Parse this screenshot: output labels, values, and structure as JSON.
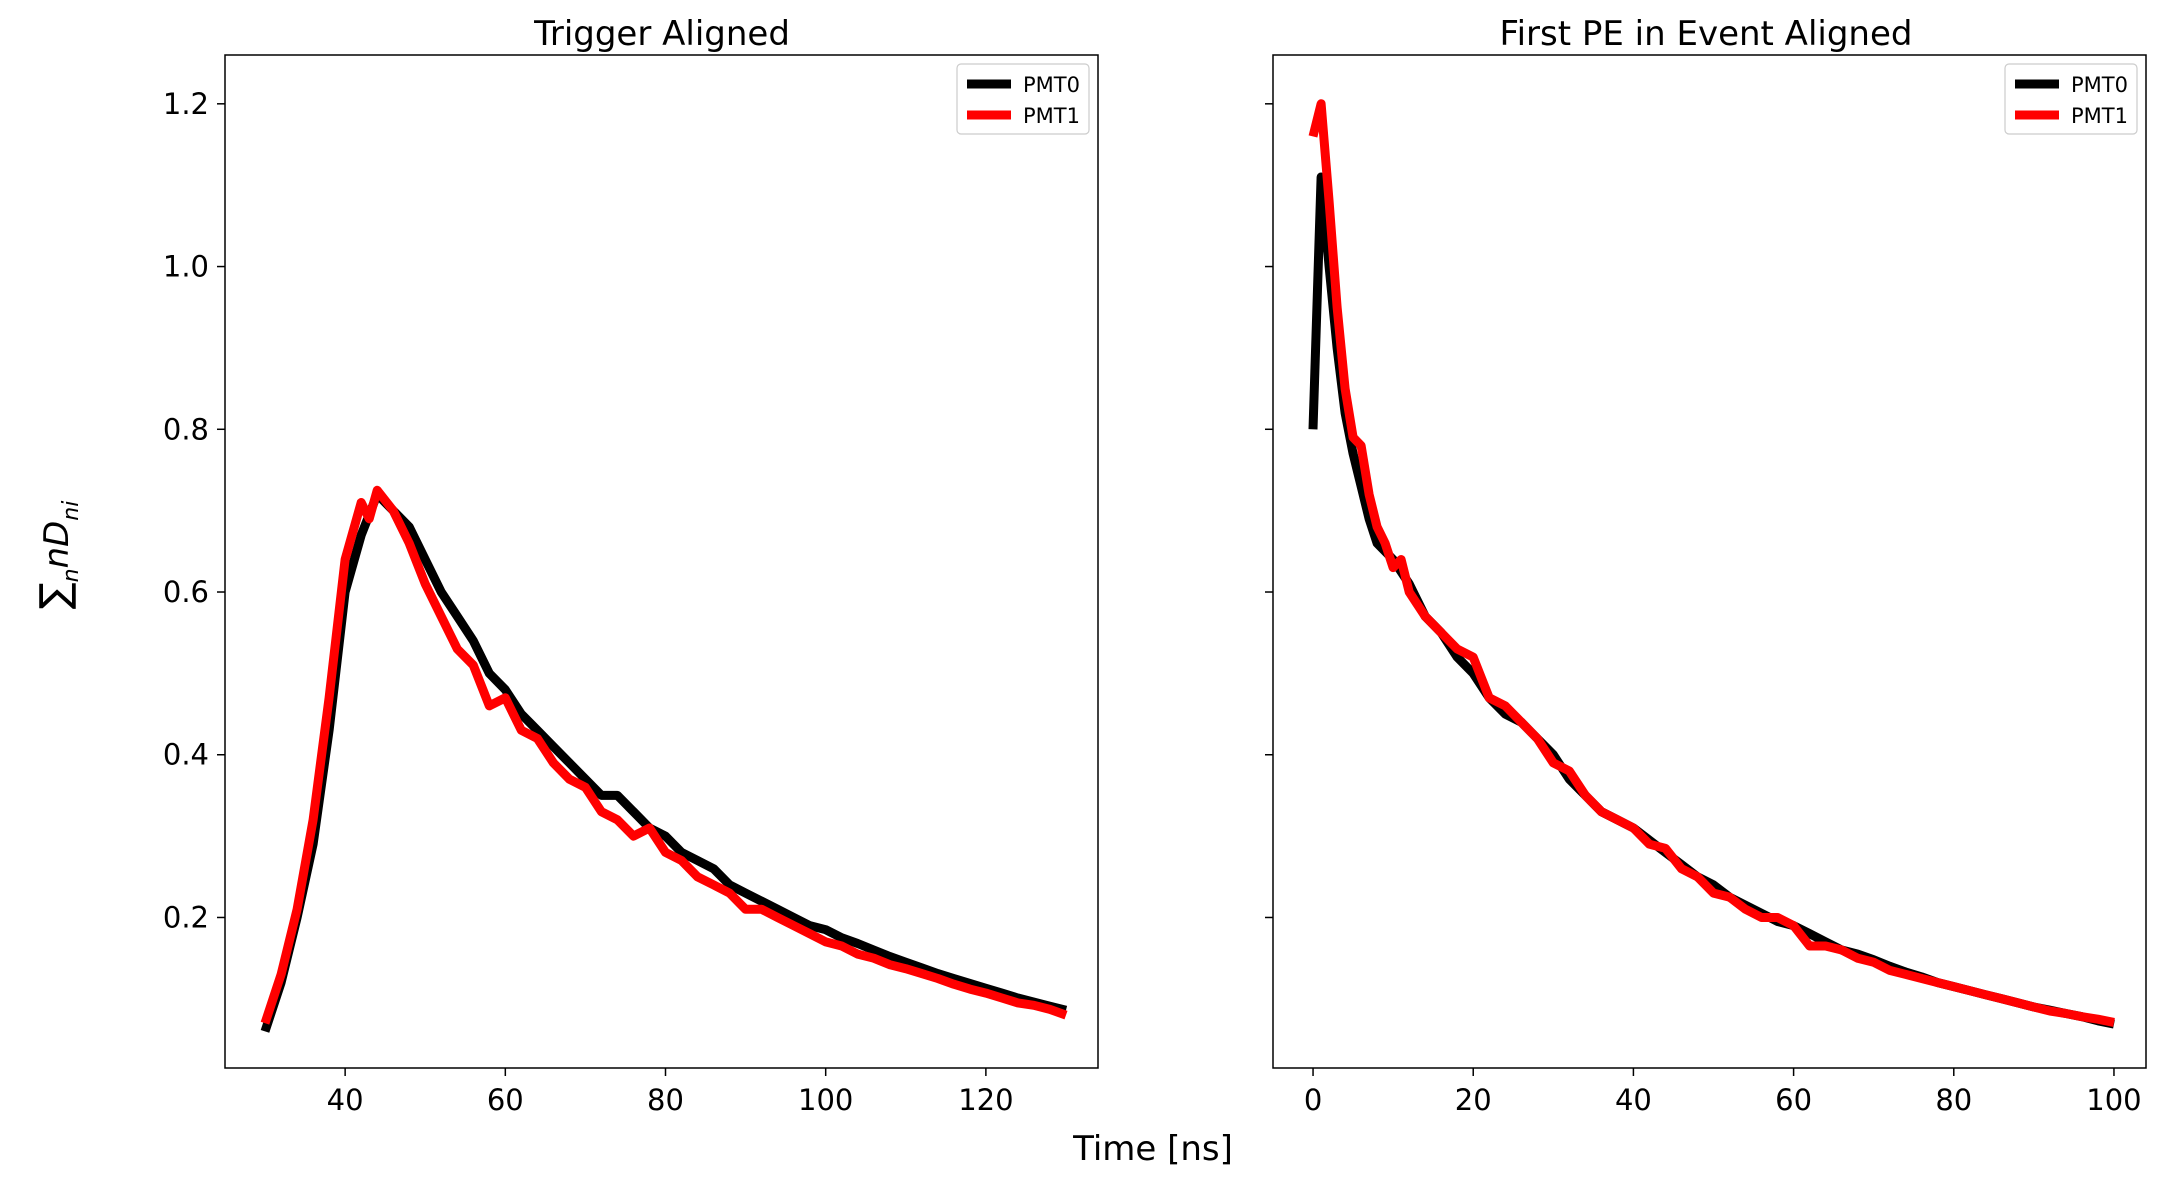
{
  "figure": {
    "xlabel": "Time [ns]",
    "ylabel_main": "∑",
    "ylabel_sub": "n",
    "ylabel_rest": "nD",
    "ylabel_rest_sub": "ni"
  },
  "chart_data": [
    {
      "type": "line",
      "title": "Trigger Aligned",
      "xlim": [
        25,
        134
      ],
      "ylim": [
        0.015,
        1.26
      ],
      "xticks": [
        40,
        60,
        80,
        100,
        120
      ],
      "yticks": [
        0.2,
        0.4,
        0.6,
        0.8,
        1.0,
        1.2
      ],
      "ytick_labels": [
        "0.2",
        "0.4",
        "0.6",
        "0.8",
        "1.0",
        "1.2"
      ],
      "show_yticklabels": true,
      "legend_position": "top-right",
      "series": [
        {
          "name": "PMT0",
          "color": "#000000",
          "x": [
            30,
            32,
            34,
            36,
            38,
            40,
            42,
            44,
            46,
            48,
            50,
            52,
            54,
            56,
            58,
            60,
            62,
            64,
            66,
            68,
            70,
            72,
            74,
            76,
            78,
            80,
            82,
            84,
            86,
            88,
            90,
            92,
            94,
            96,
            98,
            100,
            102,
            104,
            106,
            108,
            110,
            112,
            114,
            116,
            118,
            120,
            122,
            124,
            126,
            128,
            130
          ],
          "y": [
            0.06,
            0.12,
            0.2,
            0.29,
            0.43,
            0.6,
            0.67,
            0.72,
            0.7,
            0.68,
            0.64,
            0.6,
            0.57,
            0.54,
            0.5,
            0.48,
            0.45,
            0.43,
            0.41,
            0.39,
            0.37,
            0.35,
            0.35,
            0.33,
            0.31,
            0.3,
            0.28,
            0.27,
            0.26,
            0.24,
            0.23,
            0.22,
            0.21,
            0.2,
            0.19,
            0.185,
            0.175,
            0.168,
            0.16,
            0.152,
            0.145,
            0.138,
            0.131,
            0.125,
            0.119,
            0.113,
            0.107,
            0.101,
            0.096,
            0.091,
            0.086
          ]
        },
        {
          "name": "PMT1",
          "color": "#ff0000",
          "x": [
            30,
            32,
            34,
            36,
            38,
            40,
            42,
            43,
            44,
            46,
            48,
            50,
            52,
            54,
            56,
            58,
            60,
            62,
            64,
            66,
            68,
            70,
            72,
            74,
            76,
            78,
            80,
            82,
            84,
            86,
            88,
            90,
            92,
            94,
            96,
            98,
            100,
            102,
            104,
            106,
            108,
            110,
            112,
            114,
            116,
            118,
            120,
            122,
            124,
            126,
            128,
            130
          ],
          "y": [
            0.07,
            0.13,
            0.21,
            0.32,
            0.47,
            0.64,
            0.71,
            0.69,
            0.725,
            0.7,
            0.66,
            0.61,
            0.57,
            0.53,
            0.51,
            0.46,
            0.47,
            0.43,
            0.42,
            0.39,
            0.37,
            0.36,
            0.33,
            0.32,
            0.3,
            0.31,
            0.28,
            0.27,
            0.25,
            0.24,
            0.23,
            0.21,
            0.21,
            0.2,
            0.19,
            0.18,
            0.17,
            0.165,
            0.155,
            0.15,
            0.142,
            0.137,
            0.131,
            0.125,
            0.118,
            0.112,
            0.107,
            0.101,
            0.095,
            0.092,
            0.087,
            0.08
          ]
        }
      ]
    },
    {
      "type": "line",
      "title": "First PE in Event Aligned",
      "xlim": [
        -5,
        104
      ],
      "ylim": [
        0.015,
        1.26
      ],
      "xticks": [
        0,
        20,
        40,
        60,
        80,
        100
      ],
      "yticks": [
        0.2,
        0.4,
        0.6,
        0.8,
        1.0,
        1.2
      ],
      "ytick_labels": [
        "0.2",
        "0.4",
        "0.6",
        "0.8",
        "1.0",
        "1.2"
      ],
      "show_yticklabels": false,
      "legend_position": "top-right",
      "series": [
        {
          "name": "PMT0",
          "color": "#000000",
          "x": [
            0,
            1,
            2,
            3,
            4,
            5,
            6,
            7,
            8,
            9,
            10,
            12,
            14,
            16,
            18,
            20,
            22,
            24,
            26,
            28,
            30,
            32,
            34,
            36,
            38,
            40,
            42,
            44,
            46,
            48,
            50,
            52,
            54,
            56,
            58,
            60,
            62,
            64,
            66,
            68,
            70,
            72,
            74,
            76,
            78,
            80,
            82,
            84,
            86,
            88,
            90,
            92,
            94,
            96,
            98,
            100
          ],
          "y": [
            0.8,
            1.11,
            1.0,
            0.9,
            0.82,
            0.77,
            0.73,
            0.69,
            0.66,
            0.65,
            0.64,
            0.61,
            0.57,
            0.55,
            0.52,
            0.5,
            0.47,
            0.45,
            0.44,
            0.42,
            0.4,
            0.37,
            0.35,
            0.33,
            0.32,
            0.31,
            0.295,
            0.28,
            0.265,
            0.25,
            0.24,
            0.225,
            0.215,
            0.205,
            0.195,
            0.19,
            0.18,
            0.17,
            0.16,
            0.155,
            0.148,
            0.14,
            0.133,
            0.127,
            0.12,
            0.115,
            0.11,
            0.105,
            0.1,
            0.095,
            0.09,
            0.086,
            0.082,
            0.078,
            0.073,
            0.069
          ]
        },
        {
          "name": "PMT1",
          "color": "#ff0000",
          "x": [
            0,
            1,
            2,
            3,
            4,
            5,
            6,
            7,
            8,
            9,
            10,
            11,
            12,
            14,
            16,
            18,
            20,
            22,
            24,
            26,
            28,
            30,
            32,
            34,
            36,
            38,
            40,
            42,
            44,
            46,
            48,
            50,
            52,
            54,
            56,
            58,
            60,
            62,
            64,
            66,
            68,
            70,
            72,
            74,
            76,
            78,
            80,
            82,
            84,
            86,
            88,
            90,
            92,
            94,
            96,
            98,
            100
          ],
          "y": [
            1.16,
            1.2,
            1.08,
            0.95,
            0.85,
            0.79,
            0.78,
            0.72,
            0.68,
            0.66,
            0.63,
            0.64,
            0.6,
            0.57,
            0.55,
            0.53,
            0.52,
            0.47,
            0.46,
            0.44,
            0.42,
            0.39,
            0.38,
            0.35,
            0.33,
            0.32,
            0.31,
            0.29,
            0.285,
            0.26,
            0.25,
            0.23,
            0.225,
            0.21,
            0.2,
            0.2,
            0.19,
            0.165,
            0.165,
            0.16,
            0.15,
            0.145,
            0.135,
            0.13,
            0.125,
            0.12,
            0.115,
            0.11,
            0.105,
            0.1,
            0.095,
            0.09,
            0.085,
            0.082,
            0.078,
            0.075,
            0.071
          ]
        }
      ]
    }
  ]
}
